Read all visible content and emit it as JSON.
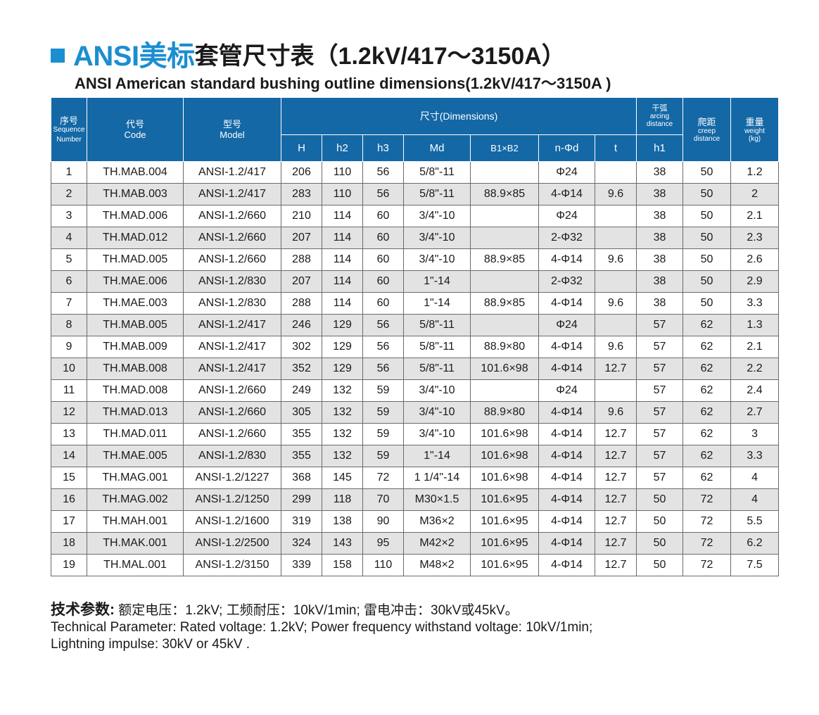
{
  "title": {
    "blue": "ANSI美标",
    "black": "套管尺寸表（1.2kV/417～3150A）",
    "subtitle": "ANSI American standard  bushing outline dimensions(1.2kV/417～3150A )"
  },
  "colors": {
    "accent": "#1b8ed1",
    "header_bg": "#1468a6",
    "stripe": "#e3e3e3"
  },
  "headers": {
    "seq_cn": "序号",
    "seq_en1": "Sequence",
    "seq_en2": "Number",
    "code_cn": "代号",
    "code_en": "Code",
    "model_cn": "型号",
    "model_en": "Model",
    "dims": "尺寸(Dimensions)",
    "arc_cn": "干弧",
    "arc_en1": "arcing",
    "arc_en2": "distance",
    "creep_cn": "爬距",
    "creep_en1": "creep",
    "creep_en2": "distance",
    "weight_cn": "重量",
    "weight_en1": "weight",
    "weight_en2": "(kg)",
    "sub": [
      "H",
      "h2",
      "h3",
      "Md",
      "B1×B2",
      "n-Φd",
      "t",
      "h1"
    ]
  },
  "rows": [
    [
      "1",
      "TH.MAB.004",
      "ANSI-1.2/417",
      "206",
      "110",
      "56",
      "5/8\"-11",
      "",
      "Φ24",
      "",
      "38",
      "50",
      "1.2"
    ],
    [
      "2",
      "TH.MAB.003",
      "ANSI-1.2/417",
      "283",
      "110",
      "56",
      "5/8\"-11",
      "88.9×85",
      "4-Φ14",
      "9.6",
      "38",
      "50",
      "2"
    ],
    [
      "3",
      "TH.MAD.006",
      "ANSI-1.2/660",
      "210",
      "114",
      "60",
      "3/4\"-10",
      "",
      "Φ24",
      "",
      "38",
      "50",
      "2.1"
    ],
    [
      "4",
      "TH.MAD.012",
      "ANSI-1.2/660",
      "207",
      "114",
      "60",
      "3/4\"-10",
      "",
      "2-Φ32",
      "",
      "38",
      "50",
      "2.3"
    ],
    [
      "5",
      "TH.MAD.005",
      "ANSI-1.2/660",
      "288",
      "114",
      "60",
      "3/4\"-10",
      "88.9×85",
      "4-Φ14",
      "9.6",
      "38",
      "50",
      "2.6"
    ],
    [
      "6",
      "TH.MAE.006",
      "ANSI-1.2/830",
      "207",
      "114",
      "60",
      "1\"-14",
      "",
      "2-Φ32",
      "",
      "38",
      "50",
      "2.9"
    ],
    [
      "7",
      "TH.MAE.003",
      "ANSI-1.2/830",
      "288",
      "114",
      "60",
      "1\"-14",
      "88.9×85",
      "4-Φ14",
      "9.6",
      "38",
      "50",
      "3.3"
    ],
    [
      "8",
      "TH.MAB.005",
      "ANSI-1.2/417",
      "246",
      "129",
      "56",
      "5/8\"-11",
      "",
      "Φ24",
      "",
      "57",
      "62",
      "1.3"
    ],
    [
      "9",
      "TH.MAB.009",
      "ANSI-1.2/417",
      "302",
      "129",
      "56",
      "5/8\"-11",
      "88.9×80",
      "4-Φ14",
      "9.6",
      "57",
      "62",
      "2.1"
    ],
    [
      "10",
      "TH.MAB.008",
      "ANSI-1.2/417",
      "352",
      "129",
      "56",
      "5/8\"-11",
      "101.6×98",
      "4-Φ14",
      "12.7",
      "57",
      "62",
      "2.2"
    ],
    [
      "11",
      "TH.MAD.008",
      "ANSI-1.2/660",
      "249",
      "132",
      "59",
      "3/4\"-10",
      "",
      "Φ24",
      "",
      "57",
      "62",
      "2.4"
    ],
    [
      "12",
      "TH.MAD.013",
      "ANSI-1.2/660",
      "305",
      "132",
      "59",
      "3/4\"-10",
      "88.9×80",
      "4-Φ14",
      "9.6",
      "57",
      "62",
      "2.7"
    ],
    [
      "13",
      "TH.MAD.011",
      "ANSI-1.2/660",
      "355",
      "132",
      "59",
      "3/4\"-10",
      "101.6×98",
      "4-Φ14",
      "12.7",
      "57",
      "62",
      "3"
    ],
    [
      "14",
      "TH.MAE.005",
      "ANSI-1.2/830",
      "355",
      "132",
      "59",
      "1\"-14",
      "101.6×98",
      "4-Φ14",
      "12.7",
      "57",
      "62",
      "3.3"
    ],
    [
      "15",
      "TH.MAG.001",
      "ANSI-1.2/1227",
      "368",
      "145",
      "72",
      "1 1/4\"-14",
      "101.6×98",
      "4-Φ14",
      "12.7",
      "57",
      "62",
      "4"
    ],
    [
      "16",
      "TH.MAG.002",
      "ANSI-1.2/1250",
      "299",
      "118",
      "70",
      "M30×1.5",
      "101.6×95",
      "4-Φ14",
      "12.7",
      "50",
      "72",
      "4"
    ],
    [
      "17",
      "TH.MAH.001",
      "ANSI-1.2/1600",
      "319",
      "138",
      "90",
      "M36×2",
      "101.6×95",
      "4-Φ14",
      "12.7",
      "50",
      "72",
      "5.5"
    ],
    [
      "18",
      "TH.MAK.001",
      "ANSI-1.2/2500",
      "324",
      "143",
      "95",
      "M42×2",
      "101.6×95",
      "4-Φ14",
      "12.7",
      "50",
      "72",
      "6.2"
    ],
    [
      "19",
      "TH.MAL.001",
      "ANSI-1.2/3150",
      "339",
      "158",
      "110",
      "M48×2",
      "101.6×95",
      "4-Φ14",
      "12.7",
      "50",
      "72",
      "7.5"
    ]
  ],
  "params": {
    "label_cn": "技术参数:",
    "text_cn": " 额定电压：1.2kV;  工频耐压：10kV/1min;  雷电冲击：30kV或45kV。",
    "en_line1": "Technical Parameter: Rated voltage: 1.2kV; Power frequency withstand voltage: 10kV/1min;",
    "en_line2": "Lightning impulse: 30kV or 45kV  ."
  }
}
